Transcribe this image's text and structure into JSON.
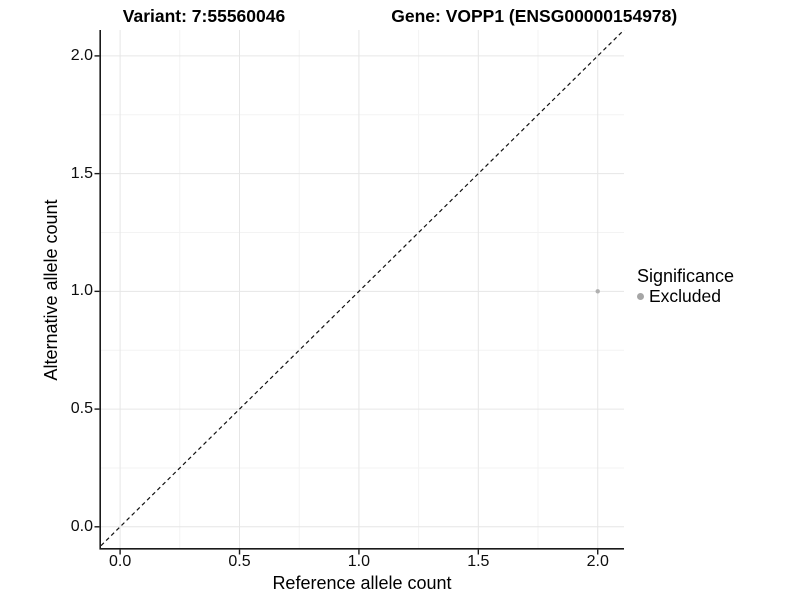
{
  "title": {
    "variant": "Variant: 7:55560046",
    "gene": "Gene: VOPP1 (ENSG00000154978)"
  },
  "legend": {
    "title": "Significance",
    "items": [
      {
        "label": "Excluded",
        "color": "#a6a6a6",
        "marker": "circle"
      }
    ]
  },
  "chart_data": {
    "type": "scatter",
    "title": "Variant: 7:55560046    Gene: VOPP1 (ENSG00000154978)",
    "xlabel": "Reference allele count",
    "ylabel": "Alternative allele count",
    "xlim": [
      -0.08,
      2.11
    ],
    "ylim": [
      -0.09,
      2.11
    ],
    "x_ticks": {
      "values": [
        0,
        0.5,
        1,
        1.5,
        2
      ],
      "labels": [
        "0.0",
        "0.5",
        "1.0",
        "1.5",
        "2.0"
      ]
    },
    "y_ticks": {
      "values": [
        0,
        0.5,
        1,
        1.5,
        2
      ],
      "labels": [
        "0.0",
        "0.5",
        "1.0",
        "1.5",
        "2.0"
      ]
    },
    "minor_ticks": [
      0.25,
      0.75,
      1.25,
      1.75
    ],
    "grid": "major+minor",
    "legend_position": "right",
    "series": [
      {
        "name": "Excluded",
        "color": "#b0b0b0",
        "point_radius": 2.2,
        "points": [
          {
            "x": 2.0,
            "y": 1.0
          }
        ]
      }
    ],
    "reference_line": {
      "kind": "identity",
      "style": "dashed",
      "color": "#111111"
    },
    "colors": {
      "major_grid": "#e6e6e6",
      "minor_grid": "#f3f3f3",
      "axis": "#1a1a1a",
      "tick": "#1a1a1a",
      "text": "#000000",
      "panel_background": "#ffffff"
    }
  }
}
